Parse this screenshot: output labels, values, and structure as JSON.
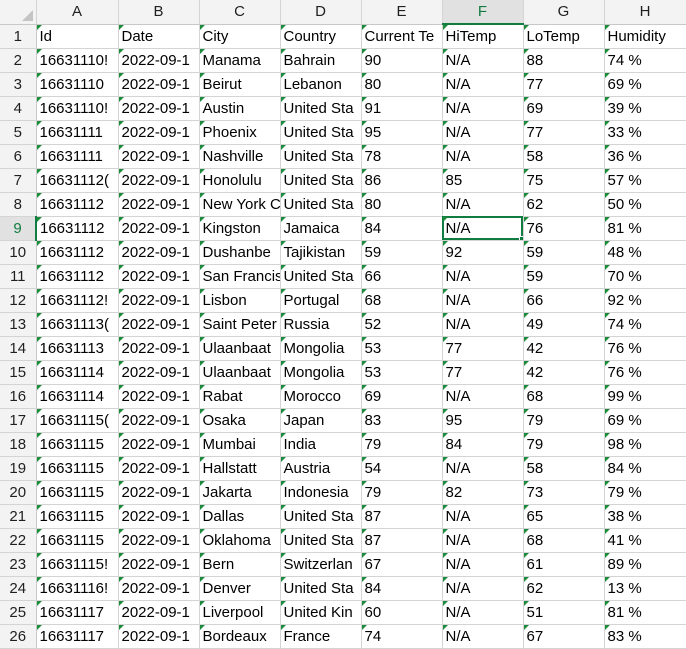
{
  "sheet": {
    "columns": [
      "A",
      "B",
      "C",
      "D",
      "E",
      "F",
      "G",
      "H"
    ],
    "active_column": "F",
    "active_row": 9,
    "rows": [
      {
        "n": "1",
        "cells": [
          "Id",
          "Date",
          "City",
          "Country",
          "Current Te",
          "HiTemp",
          "LoTemp",
          "Humidity"
        ]
      },
      {
        "n": "2",
        "cells": [
          "16631110!",
          "2022-09-1",
          "Manama",
          "Bahrain",
          "90",
          "N/A",
          "88",
          "74 %"
        ]
      },
      {
        "n": "3",
        "cells": [
          "16631110",
          "2022-09-1",
          "Beirut",
          "Lebanon",
          "80",
          "N/A",
          "77",
          "69 %"
        ]
      },
      {
        "n": "4",
        "cells": [
          "16631110!",
          "2022-09-1",
          "Austin",
          "United Sta",
          "91",
          "N/A",
          "69",
          "39 %"
        ]
      },
      {
        "n": "5",
        "cells": [
          "16631111",
          "2022-09-1",
          "Phoenix",
          "United Sta",
          "95",
          "N/A",
          "77",
          "33 %"
        ]
      },
      {
        "n": "6",
        "cells": [
          "16631111",
          "2022-09-1",
          "Nashville",
          "United Sta",
          "78",
          "N/A",
          "58",
          "36 %"
        ]
      },
      {
        "n": "7",
        "cells": [
          "16631112(",
          "2022-09-1",
          "Honolulu",
          "United Sta",
          "86",
          "85",
          "75",
          "57 %"
        ]
      },
      {
        "n": "8",
        "cells": [
          "16631112",
          "2022-09-1",
          "New York C",
          "United Sta",
          "80",
          "N/A",
          "62",
          "50 %"
        ]
      },
      {
        "n": "9",
        "cells": [
          "16631112",
          "2022-09-1",
          "Kingston",
          "Jamaica",
          "84",
          "N/A",
          "76",
          "81 %"
        ]
      },
      {
        "n": "10",
        "cells": [
          "16631112",
          "2022-09-1",
          "Dushanbe",
          "Tajikistan",
          "59",
          "92",
          "59",
          "48 %"
        ]
      },
      {
        "n": "11",
        "cells": [
          "16631112",
          "2022-09-1",
          "San Francis",
          "United Sta",
          "66",
          "N/A",
          "59",
          "70 %"
        ]
      },
      {
        "n": "12",
        "cells": [
          "16631112!",
          "2022-09-1",
          "Lisbon",
          "Portugal",
          "68",
          "N/A",
          "66",
          "92 %"
        ]
      },
      {
        "n": "13",
        "cells": [
          "16631113(",
          "2022-09-1",
          "Saint Peter",
          "Russia",
          "52",
          "N/A",
          "49",
          "74 %"
        ]
      },
      {
        "n": "14",
        "cells": [
          "16631113",
          "2022-09-1",
          "Ulaanbaat",
          "Mongolia",
          "53",
          "77",
          "42",
          "76 %"
        ]
      },
      {
        "n": "15",
        "cells": [
          "16631114",
          "2022-09-1",
          "Ulaanbaat",
          "Mongolia",
          "53",
          "77",
          "42",
          "76 %"
        ]
      },
      {
        "n": "16",
        "cells": [
          "16631114",
          "2022-09-1",
          "Rabat",
          "Morocco",
          "69",
          "N/A",
          "68",
          "99 %"
        ]
      },
      {
        "n": "17",
        "cells": [
          "16631115(",
          "2022-09-1",
          "Osaka",
          "Japan",
          "83",
          "95",
          "79",
          "69 %"
        ]
      },
      {
        "n": "18",
        "cells": [
          "16631115",
          "2022-09-1",
          "Mumbai",
          "India",
          "79",
          "84",
          "79",
          "98 %"
        ]
      },
      {
        "n": "19",
        "cells": [
          "16631115",
          "2022-09-1",
          "Hallstatt",
          "Austria",
          "54",
          "N/A",
          "58",
          "84 %"
        ]
      },
      {
        "n": "20",
        "cells": [
          "16631115",
          "2022-09-1",
          "Jakarta",
          "Indonesia",
          "79",
          "82",
          "73",
          "79 %"
        ]
      },
      {
        "n": "21",
        "cells": [
          "16631115",
          "2022-09-1",
          "Dallas",
          "United Sta",
          "87",
          "N/A",
          "65",
          "38 %"
        ]
      },
      {
        "n": "22",
        "cells": [
          "16631115",
          "2022-09-1",
          "Oklahoma",
          "United Sta",
          "87",
          "N/A",
          "68",
          "41 %"
        ]
      },
      {
        "n": "23",
        "cells": [
          "16631115!",
          "2022-09-1",
          "Bern",
          "Switzerlan",
          "67",
          "N/A",
          "61",
          "89 %"
        ]
      },
      {
        "n": "24",
        "cells": [
          "16631116!",
          "2022-09-1",
          "Denver",
          "United Sta",
          "84",
          "N/A",
          "62",
          "13 %"
        ]
      },
      {
        "n": "25",
        "cells": [
          "16631117",
          "2022-09-1",
          "Liverpool",
          "United Kin",
          "60",
          "N/A",
          "51",
          "81 %"
        ]
      },
      {
        "n": "26",
        "cells": [
          "16631117",
          "2022-09-1",
          "Bordeaux",
          "France",
          "74",
          "N/A",
          "67",
          "83 %"
        ]
      }
    ]
  }
}
